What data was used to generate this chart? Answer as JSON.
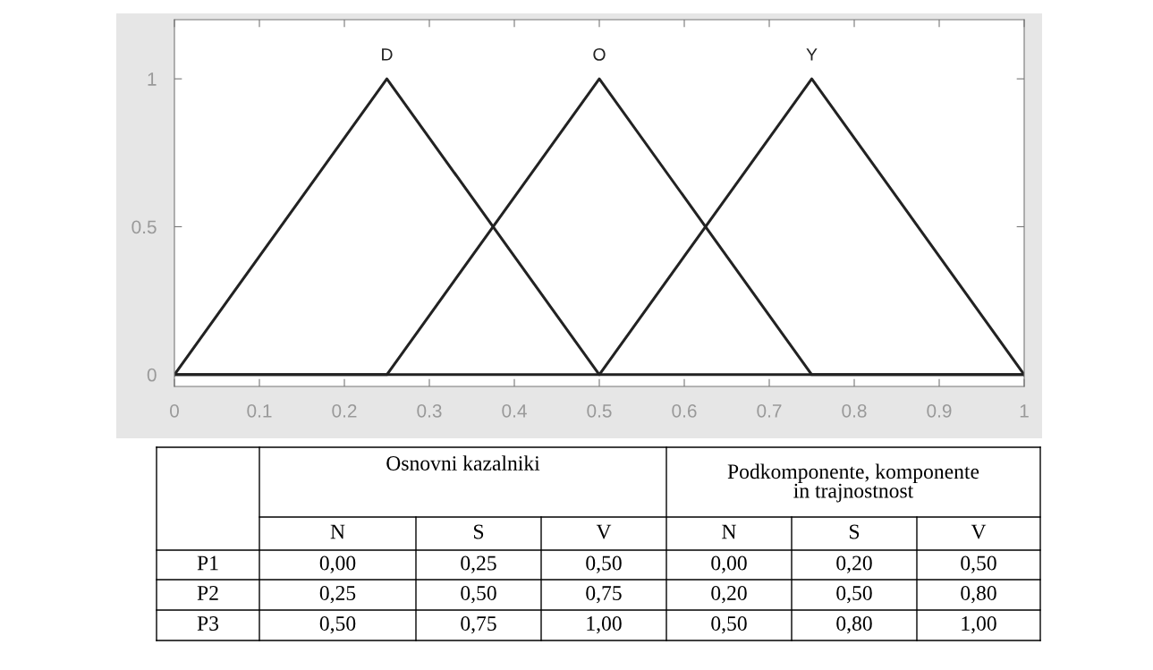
{
  "chart_data": {
    "type": "line",
    "series": [
      {
        "name": "D",
        "color": "#222222",
        "x": [
          0,
          0.25,
          0.5,
          1
        ],
        "values": [
          0,
          1,
          0,
          0
        ]
      },
      {
        "name": "O",
        "color": "#222222",
        "x": [
          0,
          0.25,
          0.5,
          0.75,
          1
        ],
        "values": [
          0,
          0,
          1,
          0,
          0
        ]
      },
      {
        "name": "Y",
        "color": "#222222",
        "x": [
          0,
          0.5,
          0.75,
          1
        ],
        "values": [
          0,
          0,
          1,
          0
        ]
      }
    ],
    "xlim": [
      0,
      1
    ],
    "xticks": [
      0,
      0.1,
      0.2,
      0.3,
      0.4,
      0.5,
      0.6,
      0.7,
      0.8,
      0.9,
      1
    ],
    "ylim": [
      -0.04,
      1.2
    ],
    "yticks": [
      0,
      0.5,
      1
    ],
    "grid": false,
    "legend": false,
    "marker": "none",
    "line_style": "solid",
    "annotations": [
      "Osnovni kazalniki",
      "Podkomponente, komponente\nin trajnostnost",
      "N",
      "S",
      "V",
      "N",
      "S",
      "V",
      "P1",
      "0,00",
      "0,25",
      "0,50",
      "0,00",
      "0,20",
      "0,50",
      "P2",
      "0,25",
      "0,50",
      "0,75",
      "0,20",
      "0,50",
      "0,80",
      "P3",
      "0,50",
      "0,75",
      "1,00",
      "0,50",
      "0,80",
      "1,00"
    ]
  }
}
